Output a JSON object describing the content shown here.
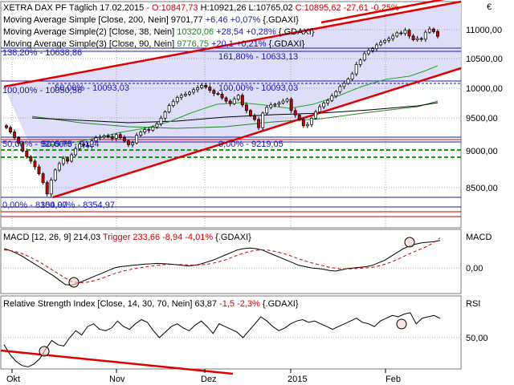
{
  "header": {
    "line1": {
      "name": "XETRA DAX PF Täglich  17.02.2015",
      "o": " - O:10847,73",
      "h": " H:10921,26",
      "l": " L:10765,02",
      "c": " C:10895,62",
      "chg": " -27,61",
      "pct": " -0,25%"
    },
    "line2": {
      "label": "Moving Average Simple [Close, 200, Nein]",
      "value": " 9701,77",
      "chg": " +6,46 +0,07%",
      "src": " {.GDAXI}"
    },
    "line3": {
      "label": "Moving Average Simple(2) [Close, 38, Nein]",
      "value": " 10320,06",
      "chg": " +28,54 +0,28%",
      "src": " {.GDAXI}"
    },
    "line4": {
      "label": "Moving Average Simple(3) [Close, 90, Nein]",
      "value": " 9776,75",
      "chg": " +20,1 +0,21%",
      "src": " {.GDAXI}"
    }
  },
  "currency": "€",
  "fib_labels": {
    "a": "138,20% - 10638,86",
    "b": "161,80% - 10633,13",
    "c": "100,00% - 10050,56",
    "d": "50,00% - 10093,03",
    "e": "100,00% - 10093,03",
    "f": "50,00% - 9205,75",
    "g": "50,00% - 9124",
    "h": "0,00% - 9219,05",
    "i": "0,00% - 8354,97",
    "j": "100,00% - 8354,97"
  },
  "macd": {
    "label": "MACD [12, 26, 9]",
    "value": " 214,03",
    "trigger": " Trigger 233,66 -8,94 -4,01%",
    "src": " {.GDAXI}",
    "title": "MACD"
  },
  "rsi": {
    "label": "Relative Strength Index [Close, 14, 30, 70, Nein]",
    "value": " 63,87",
    "chg": " -1,5 -2,3%",
    "src": " {.GDAXI}",
    "title": "RSI"
  },
  "colors": {
    "candle_up": "#ffffff",
    "candle_down": "#cc0000",
    "channel": "#e00000",
    "channel_fill": "#dcdcf8",
    "ma200": "#228822",
    "ma38": "#22aa22",
    "ma90": "#000000",
    "grid": "#b0b0b0",
    "fib": "#1a1ab0",
    "signal": "#cc0000"
  },
  "chart_data": [
    {
      "type": "candlestick",
      "title": "XETRA DAX PF Täglich",
      "x_ticks": [
        "Okt",
        "Nov",
        "Dez",
        "2015",
        "Feb"
      ],
      "y_ticks": [
        "8500,00",
        "9000,00",
        "9500,00",
        "10000,00",
        "10500,00",
        "11000,00"
      ],
      "ylim": [
        8150,
        11500
      ],
      "horizontal_levels": [
        10638.86,
        10633.13,
        10093.03,
        10050.56,
        9219.05,
        9205.75,
        9124,
        8354.97
      ],
      "close": [
        9450,
        9380,
        9290,
        9200,
        9080,
        8990,
        8920,
        8830,
        8720,
        8580,
        8400,
        8620,
        8780,
        8880,
        8960,
        8920,
        9020,
        9120,
        9190,
        9170,
        9150,
        9240,
        9290,
        9300,
        9320,
        9310,
        9280,
        9340,
        9290,
        9240,
        9180,
        9210,
        9330,
        9380,
        9420,
        9410,
        9460,
        9510,
        9600,
        9700,
        9800,
        9860,
        9930,
        9960,
        9980,
        10010,
        10050,
        10080,
        10120,
        10090,
        10040,
        9990,
        9980,
        9920,
        9870,
        9830,
        9900,
        9960,
        9810,
        9720,
        9640,
        9580,
        9450,
        9680,
        9770,
        9810,
        9820,
        9840,
        9870,
        9900,
        9720,
        9650,
        9580,
        9480,
        9500,
        9600,
        9700,
        9780,
        9840,
        9880,
        9950,
        10020,
        10100,
        10150,
        10220,
        10300,
        10450,
        10520,
        10620,
        10670,
        10700,
        10760,
        10800,
        10830,
        10860,
        10900,
        10950,
        10940,
        10990,
        10900,
        10840,
        10860,
        10850,
        10960,
        11010,
        10970,
        10895.62
      ]
    },
    {
      "type": "line",
      "title": "MACD [12, 26, 9]",
      "y_ticks": [
        "0,00"
      ],
      "series": [
        {
          "name": "MACD",
          "values": [
            150,
            135,
            115,
            90,
            60,
            30,
            0,
            -30,
            -60,
            -95,
            -130,
            -135,
            -120,
            -100,
            -80,
            -60,
            -40,
            -20,
            0,
            10,
            15,
            20,
            25,
            30,
            32,
            35,
            33,
            30,
            25,
            20,
            15,
            20,
            30,
            45,
            60,
            80,
            100,
            120,
            140,
            150,
            155,
            150,
            140,
            120,
            100,
            80,
            60,
            40,
            20,
            10,
            0,
            -5,
            -10,
            -20,
            -25,
            -15,
            -5,
            0,
            5,
            10,
            20,
            40,
            60,
            90,
            120,
            150,
            170,
            185,
            195,
            200,
            205,
            214.03
          ]
        },
        {
          "name": "Trigger",
          "values": [
            140,
            135,
            125,
            110,
            90,
            65,
            40,
            10,
            -20,
            -50,
            -80,
            -105,
            -115,
            -115,
            -108,
            -95,
            -80,
            -62,
            -45,
            -30,
            -18,
            -8,
            0,
            8,
            14,
            20,
            25,
            27,
            27,
            25,
            23,
            22,
            24,
            28,
            36,
            48,
            62,
            80,
            98,
            115,
            128,
            137,
            140,
            138,
            130,
            118,
            105,
            88,
            70,
            55,
            40,
            28,
            16,
            5,
            -4,
            -8,
            -8,
            -6,
            -3,
            0,
            5,
            15,
            28,
            45,
            65,
            88,
            110,
            130,
            150,
            170,
            200,
            233.66
          ]
        }
      ]
    },
    {
      "type": "line",
      "title": "Relative Strength Index [Close, 14, 30, 70, Nein]",
      "y_ticks": [
        "50,00"
      ],
      "series": [
        {
          "name": "RSI",
          "values": [
            45,
            38,
            33,
            30,
            29,
            31,
            35,
            42,
            48,
            45,
            44,
            50,
            55,
            52,
            58,
            60,
            56,
            55,
            57,
            62,
            58,
            56,
            60,
            63,
            61,
            55,
            50,
            54,
            58,
            60,
            57,
            55,
            59,
            62,
            58,
            53,
            60,
            58,
            56,
            54,
            50,
            55,
            60,
            65,
            62,
            58,
            55,
            57,
            60,
            62,
            63,
            61,
            62,
            60,
            58,
            56,
            58,
            60,
            62,
            64,
            61,
            60,
            58,
            62,
            64,
            66,
            65,
            67,
            68,
            60,
            64,
            65,
            66,
            63.87
          ]
        }
      ]
    }
  ]
}
